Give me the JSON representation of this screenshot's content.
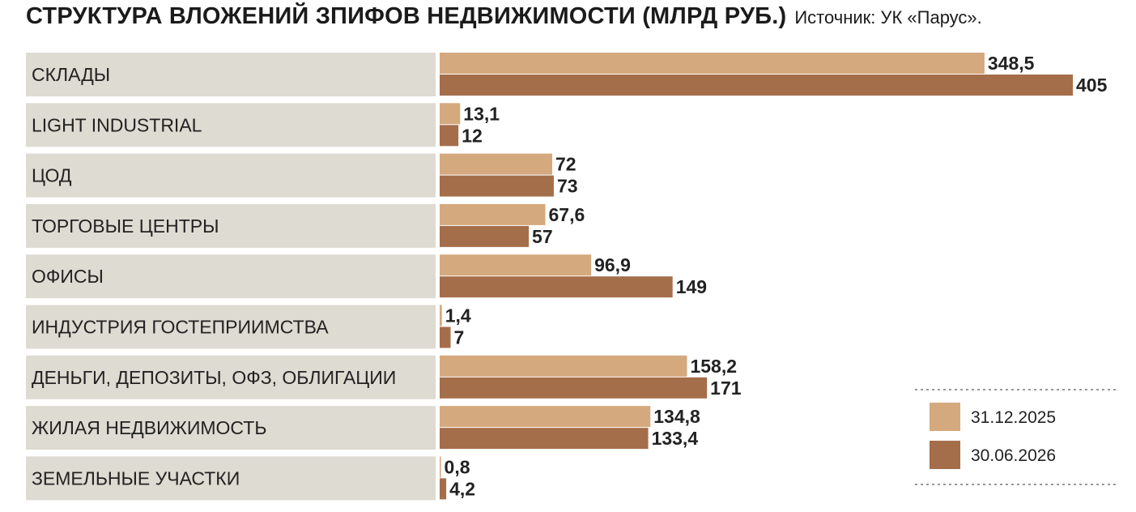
{
  "header": {
    "title": "СТРУКТУРА ВЛОЖЕНИЙ ЗПИФОВ НЕДВИЖИМОСТИ (МЛРД РУБ.)",
    "source": "Источник: УК «Парус»."
  },
  "colors": {
    "series_1": "#d4a97e",
    "series_2": "#a56e4b",
    "row_band": "#dedbd3",
    "text": "#222222"
  },
  "chart_data": {
    "type": "bar",
    "orientation": "horizontal",
    "title": "СТРУКТУРА ВЛОЖЕНИЙ ЗПИФОВ НЕДВИЖИМОСТИ (МЛРД РУБ.)",
    "categories": [
      "СКЛАДЫ",
      "LIGHT INDUSTRIAL",
      "ЦОД",
      "ТОРГОВЫЕ ЦЕНТРЫ",
      "ОФИСЫ",
      "ИНДУСТРИЯ ГОСТЕПРИИМСТВА",
      "ДЕНЬГИ, ДЕПОЗИТЫ, ОФЗ, ОБЛИГАЦИИ",
      "ЖИЛАЯ НЕДВИЖИМОСТЬ",
      "ЗЕМЕЛЬНЫЕ УЧАСТКИ"
    ],
    "series": [
      {
        "name": "31.12.2025",
        "values": [
          348.5,
          13.1,
          72,
          67.6,
          96.9,
          1.4,
          158.2,
          134.8,
          0.8
        ],
        "labels": [
          "348,5",
          "13,1",
          "72",
          "67,6",
          "96,9",
          "1,4",
          "158,2",
          "134,8",
          "0,8"
        ]
      },
      {
        "name": "30.06.2026",
        "values": [
          405,
          12,
          73,
          57,
          149,
          7,
          171,
          133.4,
          4.2
        ],
        "labels": [
          "405",
          "12",
          "73",
          "57",
          "149",
          "7",
          "171",
          "133,4",
          "4,2"
        ]
      }
    ],
    "xlim": [
      0,
      405
    ],
    "grid": false,
    "axes_visible": false,
    "legend_position": "bottom-right"
  }
}
